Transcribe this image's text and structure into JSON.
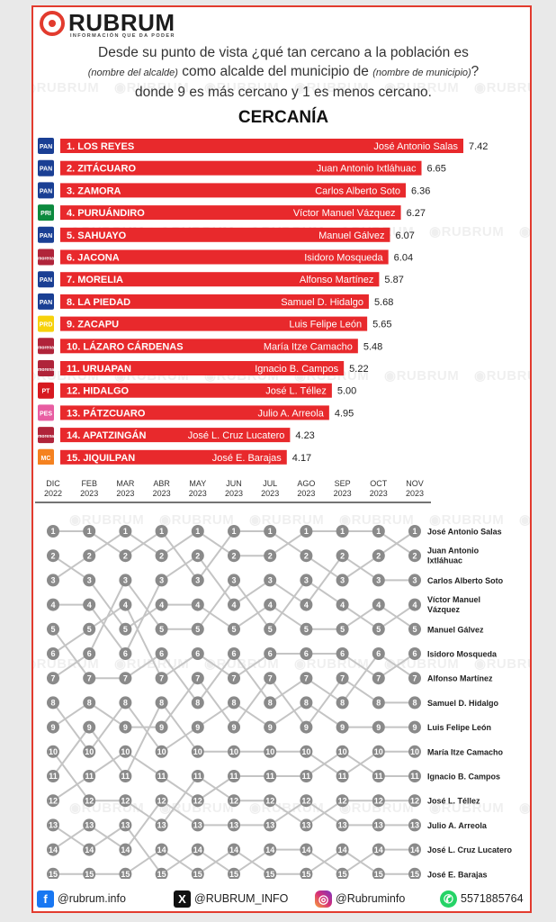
{
  "logo": {
    "word": "RUBRUM",
    "tagline": "INFORMACIÓN QUE DA PODER"
  },
  "watermark": "RUBRUM",
  "question": {
    "line1": "Desde su punto de vista ¿qué tan cercano a la población es",
    "line2_a": "(nombre del alcalde)",
    "line2_b": " como alcalde del municipio de ",
    "line2_c": "(nombre de municipio)",
    "line2_d": "?",
    "line3": "donde 9 es más cercano y 1 es menos cercano."
  },
  "colors": {
    "accent": "#e23b2e",
    "bar": "#e8292c",
    "node": "#8a8a8a",
    "line": "#c4c4c4"
  },
  "chart_data": [
    {
      "type": "bar",
      "title": "CERCANÍA",
      "orientation": "horizontal",
      "xlim": [
        0,
        7.42
      ],
      "categories": [
        "1. LOS REYES",
        "2. ZITÁCUARO",
        "3. ZAMORA",
        "4. PURUÁNDIRO",
        "5. SAHUAYO",
        "6. JACONA",
        "7. MORELIA",
        "8. LA PIEDAD",
        "9. ZACAPU",
        "10. LÁZARO CÁRDENAS",
        "11. URUAPAN",
        "12. HIDALGO",
        "13. PÁTZCUARO",
        "14. APATZINGÁN",
        "15. JIQUILPAN"
      ],
      "mayors": [
        "José Antonio Salas",
        "Juan Antonio Ixtláhuac",
        "Carlos Alberto Soto",
        "Víctor Manuel Vázquez",
        "Manuel Gálvez",
        "Isidoro Mosqueda",
        "Alfonso Martínez",
        "Samuel D. Hidalgo",
        "Luis Felipe León",
        "María Itze Camacho",
        "Ignacio B. Campos",
        "José L. Téllez",
        "Julio A. Arreola",
        "José L. Cruz Lucatero",
        "José E. Barajas"
      ],
      "values": [
        7.42,
        6.65,
        6.36,
        6.27,
        6.07,
        6.04,
        5.87,
        5.68,
        5.65,
        5.48,
        5.22,
        5.0,
        4.95,
        4.23,
        4.17
      ],
      "value_labels": [
        "7.42",
        "6.65",
        "6.36",
        "6.27",
        "6.07",
        "6.04",
        "5.87",
        "5.68",
        "5.65",
        "5.48",
        "5.22",
        "5.00",
        "4.95",
        "4.23",
        "4.17"
      ],
      "party_icons": [
        "pan-icon",
        "pan-icon",
        "pan-icon",
        "pri-icon",
        "pan-icon",
        "morena-icon",
        "pan-icon",
        "pan-icon",
        "prd-icon",
        "morena-icon",
        "morena-icon",
        "pt-icon",
        "pes-icon",
        "morena-icon",
        "mc-icon"
      ],
      "party_labels": [
        "PAN",
        "PAN",
        "PAN",
        "PRI",
        "PAN",
        "morena",
        "PAN",
        "PAN",
        "PRD",
        "morena",
        "morena",
        "PT",
        "PES",
        "morena",
        "MC"
      ],
      "party_colors": [
        "#1a3f94",
        "#1a3f94",
        "#1a3f94",
        "#0c8a3e",
        "#1a3f94",
        "#b0243a",
        "#1a3f94",
        "#1a3f94",
        "#f7d20b",
        "#b0243a",
        "#b0243a",
        "#d71920",
        "#e85da2",
        "#b0243a",
        "#f58220"
      ]
    },
    {
      "type": "bump",
      "months": [
        {
          "m": "DIC",
          "y": "2022"
        },
        {
          "m": "FEB",
          "y": "2023"
        },
        {
          "m": "MAR",
          "y": "2023"
        },
        {
          "m": "ABR",
          "y": "2023"
        },
        {
          "m": "MAY",
          "y": "2023"
        },
        {
          "m": "JUN",
          "y": "2023"
        },
        {
          "m": "JUL",
          "y": "2023"
        },
        {
          "m": "AGO",
          "y": "2023"
        },
        {
          "m": "SEP",
          "y": "2023"
        },
        {
          "m": "OCT",
          "y": "2023"
        },
        {
          "m": "NOV",
          "y": "2023"
        }
      ],
      "ranks": [
        1,
        2,
        3,
        4,
        5,
        6,
        7,
        8,
        9,
        10,
        11,
        12,
        13,
        14,
        15
      ],
      "series_final_order": [
        "José Antonio Salas",
        "Juan Antonio Ixtláhuac",
        "Carlos Alberto Soto",
        "Víctor Manuel Vázquez",
        "Manuel Gálvez",
        "Isidoro Mosqueda",
        "Alfonso Martínez",
        "Samuel D. Hidalgo",
        "Luis Felipe León",
        "María Itze Camacho",
        "Ignacio B. Campos",
        "José L. Téllez",
        "Julio A. Arreola",
        "José L. Cruz Lucatero",
        "José E. Barajas"
      ],
      "final_labels": [
        [
          "José Antonio Salas"
        ],
        [
          "Juan Antonio",
          "Ixtláhuac"
        ],
        [
          "Carlos Alberto Soto"
        ],
        [
          "Víctor Manuel",
          "Vázquez"
        ],
        [
          "Manuel Gálvez"
        ],
        [
          "Isidoro Mosqueda"
        ],
        [
          "Alfonso Martínez"
        ],
        [
          "Samuel D. Hidalgo"
        ],
        [
          "Luis Felipe León"
        ],
        [
          "María Itze Camacho"
        ],
        [
          "Ignacio B. Campos"
        ],
        [
          "José L. Téllez"
        ],
        [
          "Julio A. Arreola"
        ],
        [
          "José L. Cruz Lucatero"
        ],
        [
          "José E. Barajas"
        ]
      ],
      "rank_paths": [
        [
          1,
          1,
          2,
          1,
          3,
          1,
          1,
          2,
          3,
          2,
          1
        ],
        [
          3,
          2,
          1,
          2,
          1,
          2,
          2,
          1,
          1,
          1,
          2
        ],
        [
          4,
          4,
          6,
          3,
          2,
          4,
          3,
          4,
          2,
          3,
          3
        ],
        [
          7,
          6,
          3,
          5,
          5,
          3,
          5,
          3,
          4,
          5,
          4
        ],
        [
          2,
          3,
          5,
          4,
          4,
          5,
          4,
          5,
          5,
          4,
          5
        ],
        [
          6,
          5,
          4,
          7,
          6,
          7,
          6,
          6,
          6,
          7,
          6
        ],
        [
          5,
          7,
          7,
          6,
          8,
          6,
          8,
          7,
          8,
          6,
          7
        ],
        [
          9,
          8,
          9,
          9,
          7,
          9,
          7,
          9,
          7,
          8,
          8
        ],
        [
          8,
          10,
          8,
          10,
          9,
          8,
          9,
          8,
          9,
          9,
          9
        ],
        [
          11,
          9,
          11,
          8,
          10,
          10,
          10,
          10,
          11,
          10,
          10
        ],
        [
          12,
          11,
          10,
          11,
          12,
          11,
          11,
          11,
          10,
          11,
          11
        ],
        [
          10,
          12,
          12,
          13,
          11,
          12,
          12,
          13,
          12,
          12,
          12
        ],
        [
          14,
          13,
          14,
          12,
          13,
          13,
          13,
          12,
          13,
          13,
          13
        ],
        [
          13,
          14,
          13,
          15,
          14,
          15,
          14,
          14,
          15,
          14,
          14
        ],
        [
          15,
          15,
          15,
          14,
          15,
          14,
          15,
          15,
          14,
          15,
          15
        ]
      ]
    }
  ],
  "footer": {
    "facebook": "@rubrum.info",
    "x": "@RUBRUM_INFO",
    "instagram": "@Rubruminfo",
    "whatsapp": "5571885764"
  }
}
